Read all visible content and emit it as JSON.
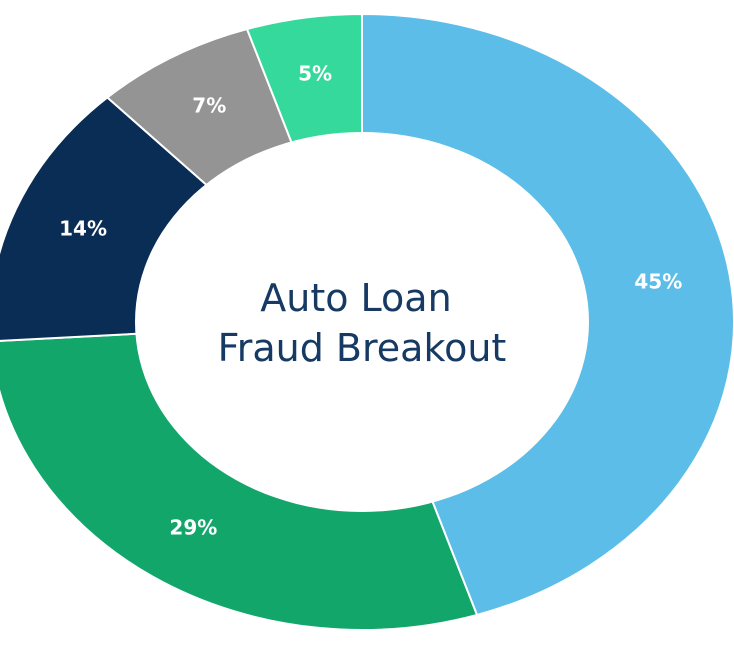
{
  "chart_data": {
    "type": "pie",
    "title": "",
    "center_label_lines": [
      "Auto Loan",
      "Fraud Breakout"
    ],
    "slices": [
      {
        "value": 45,
        "label": "45%",
        "color": "#5bbde8"
      },
      {
        "value": 29,
        "label": "29%",
        "color": "#12a66b"
      },
      {
        "value": 14,
        "label": "14%",
        "color": "#0a2d55"
      },
      {
        "value": 7,
        "label": "7%",
        "color": "#949494"
      },
      {
        "value": 5,
        "label": "5%",
        "color": "#35d99b"
      }
    ],
    "order": "clockwise-from-top",
    "hole": "white-ellipse-center"
  }
}
